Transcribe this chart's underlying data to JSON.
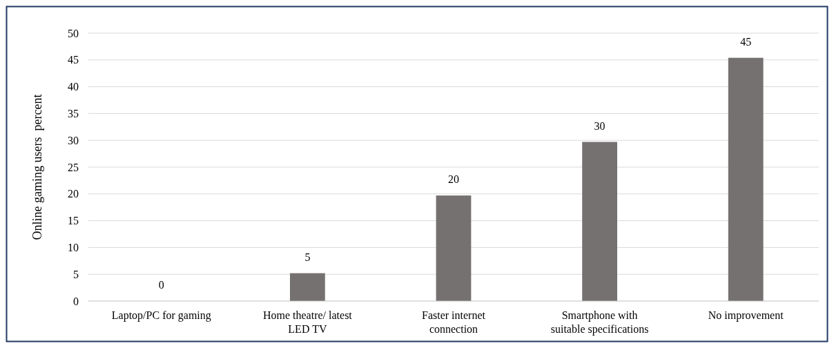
{
  "chart_data": {
    "type": "bar",
    "ylabel": "Online gaming users  percent",
    "categories": [
      "Laptop/PC for gaming",
      "Home theatre/ latest LED TV",
      "Faster internet connection",
      "Smartphone with suitable specifications",
      "No improvement"
    ],
    "values": [
      0,
      5.2,
      19.7,
      29.7,
      45.4
    ],
    "value_labels": [
      "0",
      "5",
      "20",
      "30",
      "45"
    ],
    "color": "#767171",
    "ylim": [
      0,
      50
    ],
    "yticks": [
      0,
      5,
      10,
      15,
      20,
      25,
      30,
      35,
      40,
      45,
      50
    ],
    "grid": "y"
  }
}
